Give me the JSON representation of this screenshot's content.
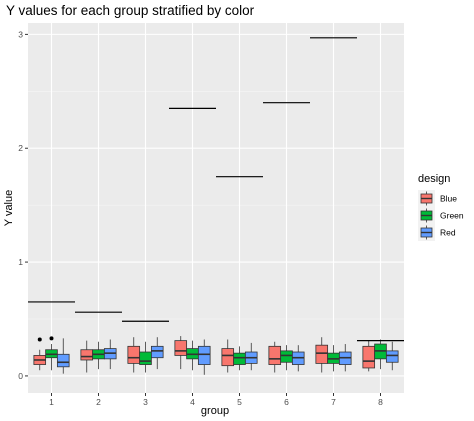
{
  "chart_data": {
    "type": "box",
    "title": "Y values for each group stratified by color",
    "xlabel": "group",
    "ylabel": "Y value",
    "categories": [
      "1",
      "2",
      "3",
      "4",
      "5",
      "6",
      "7",
      "8"
    ],
    "ylim": [
      -0.15,
      3.1
    ],
    "yticks": [
      0,
      1,
      2,
      3
    ],
    "grid": true,
    "legend": {
      "title": "design",
      "position": "right",
      "entries": [
        "Blue",
        "Green",
        "Red"
      ]
    },
    "series": [
      {
        "name": "Blue",
        "color": "#F8766D",
        "boxes": [
          {
            "q1": 0.1,
            "median": 0.14,
            "q3": 0.18,
            "whisker_low": 0.05,
            "whisker_high": 0.23,
            "outliers": [
              0.32
            ]
          },
          {
            "q1": 0.14,
            "median": 0.17,
            "q3": 0.23,
            "whisker_low": 0.03,
            "whisker_high": 0.31,
            "outliers": []
          },
          {
            "q1": 0.11,
            "median": 0.16,
            "q3": 0.26,
            "whisker_low": 0.03,
            "whisker_high": 0.34,
            "outliers": []
          },
          {
            "q1": 0.18,
            "median": 0.22,
            "q3": 0.31,
            "whisker_low": 0.06,
            "whisker_high": 0.35,
            "outliers": []
          },
          {
            "q1": 0.09,
            "median": 0.18,
            "q3": 0.24,
            "whisker_low": 0.03,
            "whisker_high": 0.32,
            "outliers": []
          },
          {
            "q1": 0.1,
            "median": 0.15,
            "q3": 0.26,
            "whisker_low": 0.03,
            "whisker_high": 0.3,
            "outliers": []
          },
          {
            "q1": 0.11,
            "median": 0.2,
            "q3": 0.27,
            "whisker_low": 0.03,
            "whisker_high": 0.34,
            "outliers": []
          },
          {
            "q1": 0.07,
            "median": 0.13,
            "q3": 0.26,
            "whisker_low": 0.04,
            "whisker_high": 0.31,
            "outliers": []
          }
        ]
      },
      {
        "name": "Green",
        "color": "#00BA38",
        "boxes": [
          {
            "q1": 0.16,
            "median": 0.19,
            "q3": 0.23,
            "whisker_low": 0.05,
            "whisker_high": 0.28,
            "outliers": [
              0.33
            ]
          },
          {
            "q1": 0.15,
            "median": 0.19,
            "q3": 0.23,
            "whisker_low": 0.06,
            "whisker_high": 0.3,
            "outliers": []
          },
          {
            "q1": 0.1,
            "median": 0.13,
            "q3": 0.21,
            "whisker_low": 0.03,
            "whisker_high": 0.3,
            "outliers": []
          },
          {
            "q1": 0.15,
            "median": 0.19,
            "q3": 0.24,
            "whisker_low": 0.05,
            "whisper_note": "",
            "whisker_high": 0.31,
            "outliers": []
          },
          {
            "q1": 0.1,
            "median": 0.16,
            "q3": 0.2,
            "whisker_low": 0.05,
            "whisker_high": 0.26,
            "outliers": []
          },
          {
            "q1": 0.12,
            "median": 0.18,
            "q3": 0.22,
            "whisker_low": 0.05,
            "whisker_high": 0.27,
            "outliers": []
          },
          {
            "q1": 0.11,
            "median": 0.15,
            "q3": 0.2,
            "whisker_low": 0.04,
            "whisker_high": 0.27,
            "outliers": []
          },
          {
            "q1": 0.15,
            "median": 0.22,
            "q3": 0.28,
            "whisker_low": 0.06,
            "whisker_high": 0.32,
            "outliers": []
          }
        ]
      },
      {
        "name": "Red",
        "color": "#619CFF",
        "boxes": [
          {
            "q1": 0.08,
            "median": 0.12,
            "q3": 0.19,
            "whisker_low": 0.02,
            "whisker_high": 0.33,
            "outliers": []
          },
          {
            "q1": 0.15,
            "median": 0.2,
            "q3": 0.24,
            "whisker_low": 0.06,
            "whisker_high": 0.32,
            "outliers": []
          },
          {
            "q1": 0.16,
            "median": 0.22,
            "q3": 0.26,
            "whisker_low": 0.06,
            "whisker_high": 0.34,
            "outliers": []
          },
          {
            "q1": 0.1,
            "median": 0.19,
            "q3": 0.26,
            "whisker_low": 0.01,
            "whisker_high": 0.32,
            "outliers": []
          },
          {
            "q1": 0.11,
            "median": 0.16,
            "q3": 0.21,
            "whisker_low": 0.05,
            "whisker_high": 0.29,
            "outliers": []
          },
          {
            "q1": 0.1,
            "median": 0.16,
            "q3": 0.21,
            "whisker_low": 0.04,
            "whisker_high": 0.27,
            "outliers": []
          },
          {
            "q1": 0.1,
            "median": 0.16,
            "q3": 0.21,
            "whisker_low": 0.04,
            "whisker_high": 0.28,
            "outliers": []
          },
          {
            "q1": 0.12,
            "median": 0.18,
            "q3": 0.22,
            "whisker_low": 0.05,
            "whisker_high": 0.3,
            "outliers": []
          }
        ]
      }
    ],
    "mean_lines": [
      {
        "group": "1",
        "value": 0.65
      },
      {
        "group": "2",
        "value": 0.56
      },
      {
        "group": "3",
        "value": 0.48
      },
      {
        "group": "4",
        "value": 2.35
      },
      {
        "group": "5",
        "value": 1.75
      },
      {
        "group": "6",
        "value": 2.4
      },
      {
        "group": "7",
        "value": 2.97
      },
      {
        "group": "8",
        "value": 0.31
      }
    ]
  }
}
